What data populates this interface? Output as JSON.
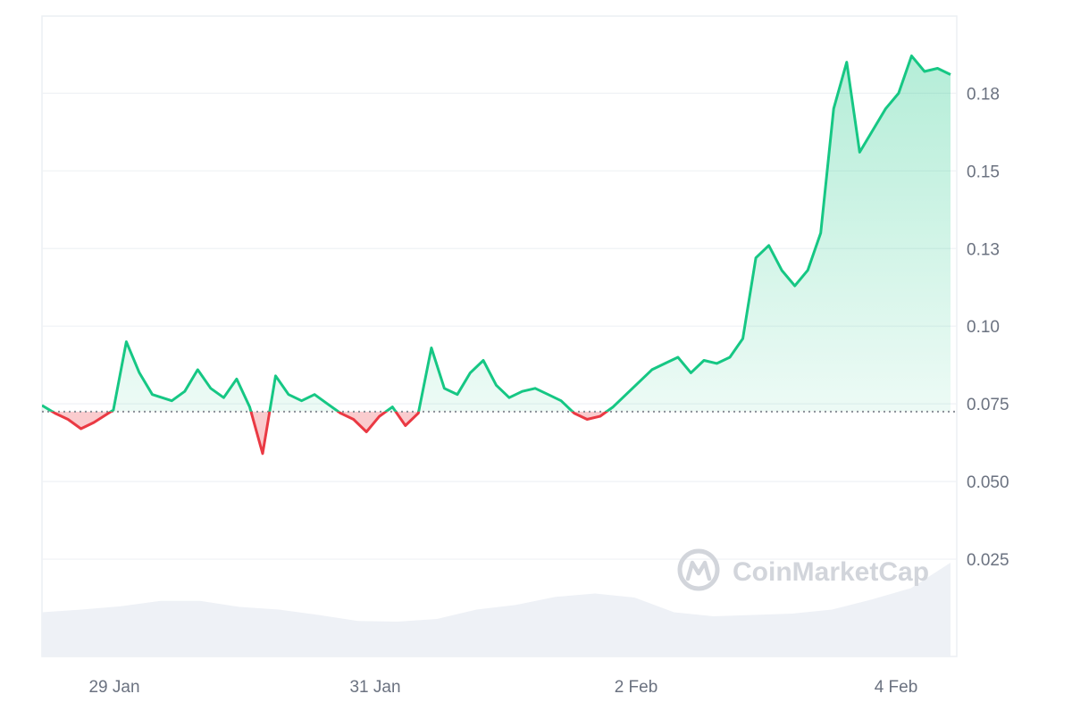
{
  "chart_data": {
    "type": "area",
    "title": "",
    "xlabel": "",
    "ylabel": "",
    "x_ticks": [
      "29 Jan",
      "31 Jan",
      "2 Feb",
      "4 Feb"
    ],
    "y_ticks": [
      "0.18",
      "0.15",
      "0.13",
      "0.10",
      "0.075",
      "0.050",
      "0.025"
    ],
    "y_tick_values": [
      0.175,
      0.15,
      0.125,
      0.1,
      0.075,
      0.05,
      0.025
    ],
    "ylim": [
      0.0,
      0.2
    ],
    "x_range_days": [
      "28 Jan 08:00",
      "4 Feb 15:00"
    ],
    "baseline": 0.0725,
    "grid": true,
    "colors": {
      "up": "#16c784",
      "down": "#ea3943",
      "up_fill": "#16c784",
      "down_fill": "#ea3943",
      "grid": "#eff2f5",
      "baseline_dots": "#8a8f98",
      "volume": "#eef1f6"
    },
    "series": [
      {
        "x_days": [
          0.0,
          0.1,
          0.2,
          0.3,
          0.4,
          0.55,
          0.65,
          0.75,
          0.85,
          1.0,
          1.1,
          1.2,
          1.3,
          1.4,
          1.5,
          1.6,
          1.7,
          1.8,
          1.9,
          2.0,
          2.1,
          2.2,
          2.3,
          2.4,
          2.5,
          2.6,
          2.7,
          2.8,
          2.9,
          3.0,
          3.1,
          3.2,
          3.3,
          3.4,
          3.5,
          3.6,
          3.7,
          3.8,
          3.9,
          4.0,
          4.1,
          4.2,
          4.3,
          4.4,
          4.5,
          4.6,
          4.7,
          4.8,
          4.9,
          5.0,
          5.1,
          5.2,
          5.3,
          5.4,
          5.5,
          5.6,
          5.7,
          5.8,
          5.9,
          6.0,
          6.1,
          6.2,
          6.3,
          6.4,
          6.5,
          6.6,
          6.7,
          6.8,
          6.9,
          7.0
        ],
        "values": [
          0.0745,
          0.072,
          0.07,
          0.067,
          0.069,
          0.073,
          0.095,
          0.085,
          0.078,
          0.076,
          0.079,
          0.086,
          0.08,
          0.077,
          0.083,
          0.074,
          0.059,
          0.084,
          0.078,
          0.076,
          0.078,
          0.075,
          0.072,
          0.07,
          0.066,
          0.071,
          0.074,
          0.068,
          0.072,
          0.093,
          0.08,
          0.078,
          0.085,
          0.089,
          0.081,
          0.077,
          0.079,
          0.08,
          0.078,
          0.076,
          0.072,
          0.07,
          0.071,
          0.074,
          0.078,
          0.082,
          0.086,
          0.088,
          0.09,
          0.085,
          0.089,
          0.088,
          0.09,
          0.096,
          0.122,
          0.126,
          0.118,
          0.113,
          0.118,
          0.13,
          0.17,
          0.185,
          0.156,
          0.163,
          0.17,
          0.175,
          0.187,
          0.182,
          0.183,
          0.181
        ]
      }
    ],
    "volume_profile": [
      0.26,
      0.3,
      0.35,
      0.43,
      0.43,
      0.34,
      0.3,
      0.22,
      0.13,
      0.12,
      0.16,
      0.3,
      0.37,
      0.49,
      0.54,
      0.48,
      0.26,
      0.2,
      0.22,
      0.24,
      0.3,
      0.45,
      0.62,
      1.0
    ]
  },
  "watermark": {
    "text": "CoinMarketCap",
    "icon": "coinmarketcap-logo-icon"
  }
}
